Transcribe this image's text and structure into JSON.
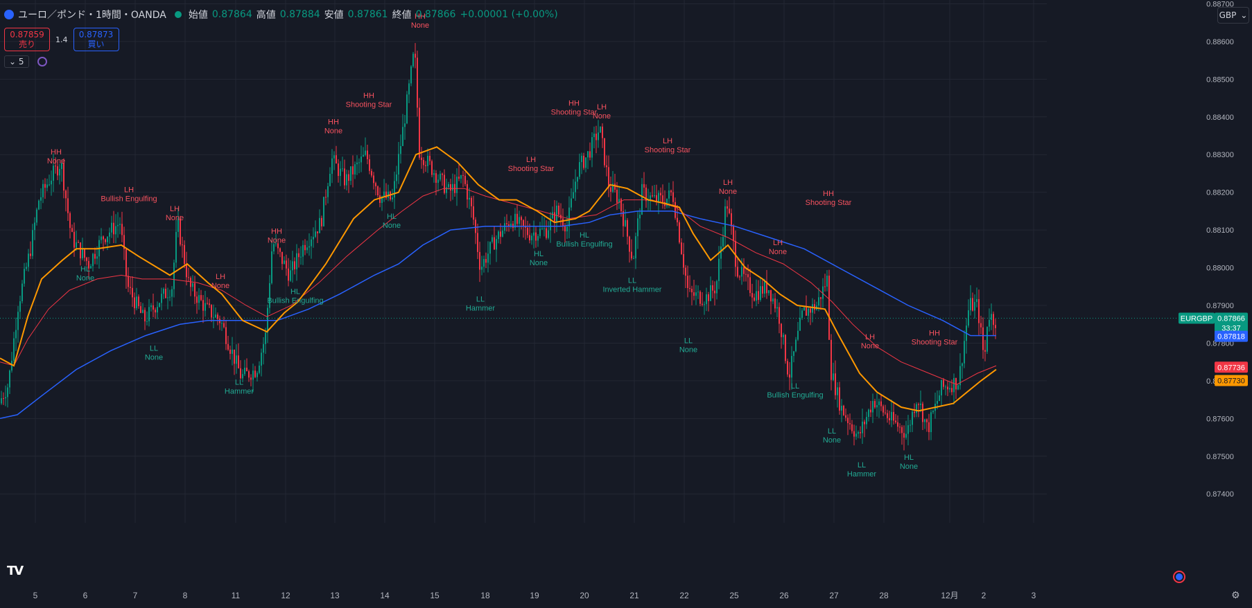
{
  "header": {
    "title": "ユーロ／ポンド・1時間・OANDA",
    "open_label": "始値",
    "open": "0.87864",
    "high_label": "高値",
    "high": "0.87884",
    "low_label": "安値",
    "low": "0.87861",
    "close_label": "終値",
    "close": "0.87866",
    "change": "+0.00001 (+0.00%)"
  },
  "trade": {
    "sell_price": "0.87859",
    "sell_label": "売り",
    "spread": "1.4",
    "buy_price": "0.87873",
    "buy_label": "買い"
  },
  "indicator_count": "5",
  "currency": "GBP",
  "colors": {
    "background": "#161a25",
    "up": "#089981",
    "down": "#f23645",
    "ema_fast": "#ff9800",
    "ema_mid": "#f23645",
    "ema_slow": "#2962ff"
  },
  "chart_data": {
    "type": "candlestick",
    "symbol": "EURGBP",
    "timeframe": "1h",
    "ylim": [
      0.8736,
      0.8871
    ],
    "y_ticks": [
      "0.87400",
      "0.87500",
      "0.87600",
      "0.87700",
      "0.87800",
      "0.87900",
      "0.88000",
      "0.88100",
      "0.88200",
      "0.88300",
      "0.88400",
      "0.88500",
      "0.88600",
      "0.88700"
    ],
    "x_ticks": [
      "5",
      "6",
      "7",
      "8",
      "11",
      "12",
      "13",
      "14",
      "15",
      "18",
      "19",
      "20",
      "21",
      "22",
      "25",
      "26",
      "27",
      "28",
      "12月",
      "2",
      "3"
    ],
    "price_labels": {
      "symbol": "EURGBP",
      "last": "0.87866",
      "countdown": "33:37",
      "ema_slow": "0.87818",
      "ema_mid": "0.87736",
      "ema_fast": "0.87730"
    },
    "anchors": [
      [
        0,
        0.8764
      ],
      [
        14,
        0.8769
      ],
      [
        28,
        0.879
      ],
      [
        46,
        0.8805
      ],
      [
        58,
        0.8818
      ],
      [
        72,
        0.8823
      ],
      [
        90,
        0.8828
      ],
      [
        105,
        0.8808
      ],
      [
        130,
        0.8801
      ],
      [
        150,
        0.8808
      ],
      [
        175,
        0.8812
      ],
      [
        186,
        0.8795
      ],
      [
        210,
        0.8786
      ],
      [
        230,
        0.8791
      ],
      [
        250,
        0.8795
      ],
      [
        258,
        0.8812
      ],
      [
        275,
        0.8795
      ],
      [
        300,
        0.8789
      ],
      [
        320,
        0.8786
      ],
      [
        350,
        0.8771
      ],
      [
        372,
        0.8773
      ],
      [
        385,
        0.8782
      ],
      [
        395,
        0.8807
      ],
      [
        420,
        0.8798
      ],
      [
        440,
        0.8806
      ],
      [
        465,
        0.8812
      ],
      [
        480,
        0.8829
      ],
      [
        500,
        0.8823
      ],
      [
        530,
        0.883
      ],
      [
        550,
        0.8819
      ],
      [
        568,
        0.8818
      ],
      [
        590,
        0.8845
      ],
      [
        600,
        0.8858
      ],
      [
        607,
        0.8831
      ],
      [
        630,
        0.8825
      ],
      [
        650,
        0.882
      ],
      [
        670,
        0.8824
      ],
      [
        684,
        0.8814
      ],
      [
        695,
        0.88
      ],
      [
        715,
        0.8807
      ],
      [
        740,
        0.8813
      ],
      [
        765,
        0.8809
      ],
      [
        790,
        0.881
      ],
      [
        805,
        0.8815
      ],
      [
        820,
        0.8811
      ],
      [
        835,
        0.8826
      ],
      [
        850,
        0.883
      ],
      [
        867,
        0.8837
      ],
      [
        880,
        0.8822
      ],
      [
        895,
        0.8818
      ],
      [
        915,
        0.8802
      ],
      [
        928,
        0.882
      ],
      [
        945,
        0.8818
      ],
      [
        962,
        0.8818
      ],
      [
        972,
        0.882
      ],
      [
        985,
        0.8805
      ],
      [
        995,
        0.8793
      ],
      [
        1020,
        0.8792
      ],
      [
        1035,
        0.8795
      ],
      [
        1050,
        0.8818
      ],
      [
        1065,
        0.88
      ],
      [
        1090,
        0.8793
      ],
      [
        1110,
        0.8795
      ],
      [
        1125,
        0.8788
      ],
      [
        1140,
        0.8771
      ],
      [
        1160,
        0.8788
      ],
      [
        1180,
        0.879
      ],
      [
        1195,
        0.8797
      ],
      [
        1200,
        0.8773
      ],
      [
        1215,
        0.8763
      ],
      [
        1240,
        0.8755
      ],
      [
        1262,
        0.8765
      ],
      [
        1285,
        0.876
      ],
      [
        1310,
        0.8756
      ],
      [
        1325,
        0.8766
      ],
      [
        1340,
        0.8757
      ],
      [
        1360,
        0.8768
      ],
      [
        1385,
        0.877
      ],
      [
        1400,
        0.879
      ],
      [
        1412,
        0.879
      ],
      [
        1422,
        0.8775
      ],
      [
        1427,
        0.8788
      ],
      [
        1437,
        0.8786
      ]
    ],
    "ema_fast": [
      [
        0,
        0.8776
      ],
      [
        20,
        0.8774
      ],
      [
        40,
        0.8787
      ],
      [
        60,
        0.8797
      ],
      [
        90,
        0.8802
      ],
      [
        110,
        0.8805
      ],
      [
        140,
        0.8805
      ],
      [
        175,
        0.8806
      ],
      [
        200,
        0.8803
      ],
      [
        245,
        0.8798
      ],
      [
        270,
        0.8801
      ],
      [
        300,
        0.8796
      ],
      [
        320,
        0.8793
      ],
      [
        350,
        0.8786
      ],
      [
        385,
        0.8783
      ],
      [
        410,
        0.8788
      ],
      [
        430,
        0.8791
      ],
      [
        470,
        0.8801
      ],
      [
        510,
        0.8813
      ],
      [
        540,
        0.8818
      ],
      [
        575,
        0.882
      ],
      [
        600,
        0.883
      ],
      [
        630,
        0.8832
      ],
      [
        660,
        0.8828
      ],
      [
        690,
        0.8822
      ],
      [
        720,
        0.8818
      ],
      [
        745,
        0.8818
      ],
      [
        775,
        0.8815
      ],
      [
        800,
        0.8812
      ],
      [
        830,
        0.8813
      ],
      [
        850,
        0.8815
      ],
      [
        880,
        0.8822
      ],
      [
        905,
        0.8821
      ],
      [
        935,
        0.8818
      ],
      [
        960,
        0.8817
      ],
      [
        980,
        0.8816
      ],
      [
        1000,
        0.8809
      ],
      [
        1025,
        0.8802
      ],
      [
        1050,
        0.8806
      ],
      [
        1075,
        0.88
      ],
      [
        1100,
        0.8797
      ],
      [
        1125,
        0.8793
      ],
      [
        1150,
        0.879
      ],
      [
        1190,
        0.8789
      ],
      [
        1210,
        0.8782
      ],
      [
        1240,
        0.8772
      ],
      [
        1265,
        0.8767
      ],
      [
        1300,
        0.8763
      ],
      [
        1325,
        0.8762
      ],
      [
        1350,
        0.8763
      ],
      [
        1375,
        0.8764
      ],
      [
        1395,
        0.8767
      ],
      [
        1415,
        0.877
      ],
      [
        1437,
        0.8773
      ]
    ],
    "ema_mid": [
      [
        0,
        0.8775
      ],
      [
        20,
        0.8774
      ],
      [
        40,
        0.8781
      ],
      [
        70,
        0.8789
      ],
      [
        100,
        0.8794
      ],
      [
        140,
        0.8797
      ],
      [
        175,
        0.8798
      ],
      [
        205,
        0.8797
      ],
      [
        245,
        0.8797
      ],
      [
        285,
        0.8796
      ],
      [
        320,
        0.8794
      ],
      [
        355,
        0.879
      ],
      [
        385,
        0.8787
      ],
      [
        420,
        0.879
      ],
      [
        460,
        0.8796
      ],
      [
        500,
        0.8803
      ],
      [
        545,
        0.881
      ],
      [
        580,
        0.8815
      ],
      [
        610,
        0.8819
      ],
      [
        640,
        0.8821
      ],
      [
        670,
        0.8821
      ],
      [
        700,
        0.8819
      ],
      [
        740,
        0.8817
      ],
      [
        780,
        0.8815
      ],
      [
        820,
        0.8813
      ],
      [
        860,
        0.8814
      ],
      [
        900,
        0.8818
      ],
      [
        940,
        0.8818
      ],
      [
        975,
        0.8816
      ],
      [
        1010,
        0.8811
      ],
      [
        1050,
        0.8808
      ],
      [
        1090,
        0.8804
      ],
      [
        1130,
        0.8801
      ],
      [
        1170,
        0.8796
      ],
      [
        1200,
        0.8791
      ],
      [
        1230,
        0.8785
      ],
      [
        1265,
        0.8779
      ],
      [
        1300,
        0.8775
      ],
      [
        1340,
        0.8772
      ],
      [
        1380,
        0.8769
      ],
      [
        1410,
        0.8772
      ],
      [
        1437,
        0.8774
      ]
    ],
    "ema_slow": [
      [
        0,
        0.876
      ],
      [
        25,
        0.8761
      ],
      [
        60,
        0.8766
      ],
      [
        110,
        0.8773
      ],
      [
        160,
        0.8778
      ],
      [
        210,
        0.8782
      ],
      [
        260,
        0.8785
      ],
      [
        300,
        0.8786
      ],
      [
        350,
        0.8786
      ],
      [
        400,
        0.8786
      ],
      [
        445,
        0.8789
      ],
      [
        490,
        0.8793
      ],
      [
        540,
        0.8798
      ],
      [
        575,
        0.8801
      ],
      [
        610,
        0.8806
      ],
      [
        650,
        0.881
      ],
      [
        700,
        0.8811
      ],
      [
        760,
        0.8811
      ],
      [
        810,
        0.8811
      ],
      [
        850,
        0.8812
      ],
      [
        880,
        0.8814
      ],
      [
        920,
        0.8815
      ],
      [
        970,
        0.8815
      ],
      [
        1010,
        0.8813
      ],
      [
        1060,
        0.8811
      ],
      [
        1110,
        0.8808
      ],
      [
        1160,
        0.8805
      ],
      [
        1210,
        0.88
      ],
      [
        1260,
        0.8795
      ],
      [
        1310,
        0.879
      ],
      [
        1360,
        0.8786
      ],
      [
        1400,
        0.8782
      ],
      [
        1437,
        0.8782
      ]
    ],
    "annotations": [
      {
        "x": 81,
        "y": 0.883,
        "kind": "high",
        "lines": [
          "HH",
          "None"
        ]
      },
      {
        "x": 186,
        "y": 0.882,
        "kind": "high",
        "lines": [
          "LH",
          "Bullish Engulfing"
        ]
      },
      {
        "x": 252,
        "y": 0.8815,
        "kind": "high",
        "lines": [
          "LH",
          "None"
        ]
      },
      {
        "x": 123,
        "y": 0.8799,
        "kind": "low",
        "lines": [
          "HL",
          "None"
        ]
      },
      {
        "x": 318,
        "y": 0.8797,
        "kind": "high",
        "lines": [
          "LH",
          "None"
        ]
      },
      {
        "x": 222,
        "y": 0.8778,
        "kind": "low",
        "lines": [
          "LL",
          "None"
        ]
      },
      {
        "x": 345,
        "y": 0.8769,
        "kind": "low",
        "lines": [
          "LL",
          "Hammer"
        ]
      },
      {
        "x": 399,
        "y": 0.8809,
        "kind": "high",
        "lines": [
          "HH",
          "None"
        ]
      },
      {
        "x": 426,
        "y": 0.8793,
        "kind": "low",
        "lines": [
          "HL",
          "Bullish Engulfing"
        ]
      },
      {
        "x": 481,
        "y": 0.8838,
        "kind": "high",
        "lines": [
          "HH",
          "None"
        ]
      },
      {
        "x": 532,
        "y": 0.8845,
        "kind": "high",
        "lines": [
          "HH",
          "Shooting Star"
        ]
      },
      {
        "x": 565,
        "y": 0.8813,
        "kind": "low",
        "lines": [
          "HL",
          "None"
        ]
      },
      {
        "x": 606,
        "y": 0.8866,
        "kind": "high",
        "lines": [
          "HH",
          "None"
        ]
      },
      {
        "x": 693,
        "y": 0.8791,
        "kind": "low",
        "lines": [
          "LL",
          "Hammer"
        ]
      },
      {
        "x": 766,
        "y": 0.8828,
        "kind": "high",
        "lines": [
          "LH",
          "Shooting Star"
        ]
      },
      {
        "x": 777,
        "y": 0.8803,
        "kind": "low",
        "lines": [
          "HL",
          "None"
        ]
      },
      {
        "x": 828,
        "y": 0.8843,
        "kind": "high",
        "lines": [
          "HH",
          "Shooting Star"
        ]
      },
      {
        "x": 868,
        "y": 0.8842,
        "kind": "high",
        "lines": [
          "LH",
          "None"
        ]
      },
      {
        "x": 843,
        "y": 0.8808,
        "kind": "low",
        "lines": [
          "HL",
          "Bullish Engulfing"
        ]
      },
      {
        "x": 963,
        "y": 0.8833,
        "kind": "high",
        "lines": [
          "LH",
          "Shooting Star"
        ]
      },
      {
        "x": 912,
        "y": 0.8796,
        "kind": "low",
        "lines": [
          "LL",
          "Inverted Hammer"
        ]
      },
      {
        "x": 1050,
        "y": 0.8822,
        "kind": "high",
        "lines": [
          "LH",
          "None"
        ]
      },
      {
        "x": 993,
        "y": 0.878,
        "kind": "low",
        "lines": [
          "LL",
          "None"
        ]
      },
      {
        "x": 1195,
        "y": 0.8819,
        "kind": "high",
        "lines": [
          "HH",
          "Shooting Star"
        ]
      },
      {
        "x": 1122,
        "y": 0.8806,
        "kind": "high",
        "lines": [
          "LH",
          "None"
        ]
      },
      {
        "x": 1147,
        "y": 0.8768,
        "kind": "low",
        "lines": [
          "LL",
          "Bullish Engulfing"
        ]
      },
      {
        "x": 1200,
        "y": 0.8756,
        "kind": "low",
        "lines": [
          "LL",
          "None"
        ]
      },
      {
        "x": 1255,
        "y": 0.8781,
        "kind": "high",
        "lines": [
          "LH",
          "None"
        ]
      },
      {
        "x": 1348,
        "y": 0.8782,
        "kind": "high",
        "lines": [
          "HH",
          "Shooting Star"
        ]
      },
      {
        "x": 1243,
        "y": 0.8747,
        "kind": "low",
        "lines": [
          "LL",
          "Hammer"
        ]
      },
      {
        "x": 1311,
        "y": 0.8749,
        "kind": "low",
        "lines": [
          "HL",
          "None"
        ]
      }
    ]
  }
}
